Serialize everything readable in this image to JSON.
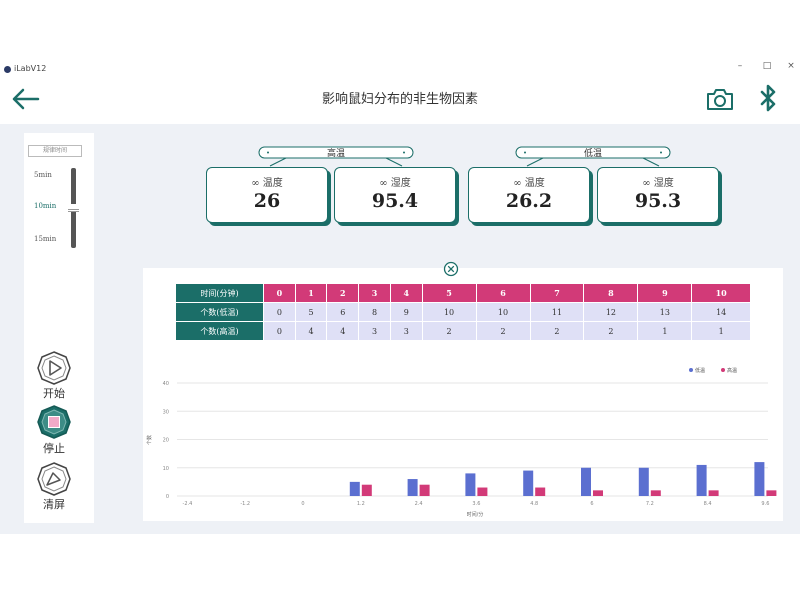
{
  "window": {
    "title": "iLabV12",
    "minimize": "–",
    "maximize": "□",
    "close": "×"
  },
  "header": {
    "title": "影响鼠妇分布的非生物因素"
  },
  "left_panel": {
    "sample_label": "规律时间",
    "intervals": [
      "5min",
      "10min",
      "15min"
    ],
    "selected_interval": "10min",
    "buttons": {
      "start": "开始",
      "stop": "停止",
      "clear": "清屏"
    }
  },
  "groups": [
    {
      "name": "高温",
      "cards": [
        {
          "label": "∞ 温度",
          "value": "26"
        },
        {
          "label": "∞ 湿度",
          "value": "95.4"
        }
      ]
    },
    {
      "name": "低温",
      "cards": [
        {
          "label": "∞ 温度",
          "value": "26.2"
        },
        {
          "label": "∞ 湿度",
          "value": "95.3"
        }
      ]
    }
  ],
  "table": {
    "rows": [
      {
        "label": "时间(分钟)",
        "values": [
          "0",
          "1",
          "2",
          "3",
          "4",
          "5",
          "6",
          "7",
          "8",
          "9",
          "10"
        ]
      },
      {
        "label": "个数(低温)",
        "values": [
          "0",
          "5",
          "6",
          "8",
          "9",
          "10",
          "10",
          "11",
          "12",
          "13",
          "14"
        ]
      },
      {
        "label": "个数(高温)",
        "values": [
          "0",
          "4",
          "4",
          "3",
          "3",
          "2",
          "2",
          "2",
          "2",
          "1",
          "1"
        ]
      }
    ]
  },
  "colors": {
    "accent": "#1b6e68",
    "low_series": "#5b6fd0",
    "high_series": "#d23a78",
    "table_body": "#dfe0f6"
  },
  "chart_data": {
    "type": "bar",
    "categories": [
      0,
      1,
      2,
      3,
      4,
      5,
      6,
      7,
      8,
      9,
      10
    ],
    "series": [
      {
        "name": "低温",
        "values": [
          0,
          5,
          6,
          8,
          9,
          10,
          10,
          11,
          12,
          13,
          14
        ]
      },
      {
        "name": "高温",
        "values": [
          0,
          4,
          4,
          3,
          3,
          2,
          2,
          2,
          2,
          1,
          1
        ]
      }
    ],
    "xticks": [
      "-2.4",
      "-1.2",
      "0",
      "1.2",
      "2.4",
      "3.6",
      "4.8",
      "6",
      "7.2",
      "8.4",
      "9.6"
    ],
    "yticks": [
      "0",
      "10",
      "20",
      "30",
      "40"
    ],
    "ylim": [
      0,
      40
    ],
    "xlabel": "时间/分",
    "ylabel": "个数",
    "grid": true,
    "legend_position": "top-right"
  }
}
